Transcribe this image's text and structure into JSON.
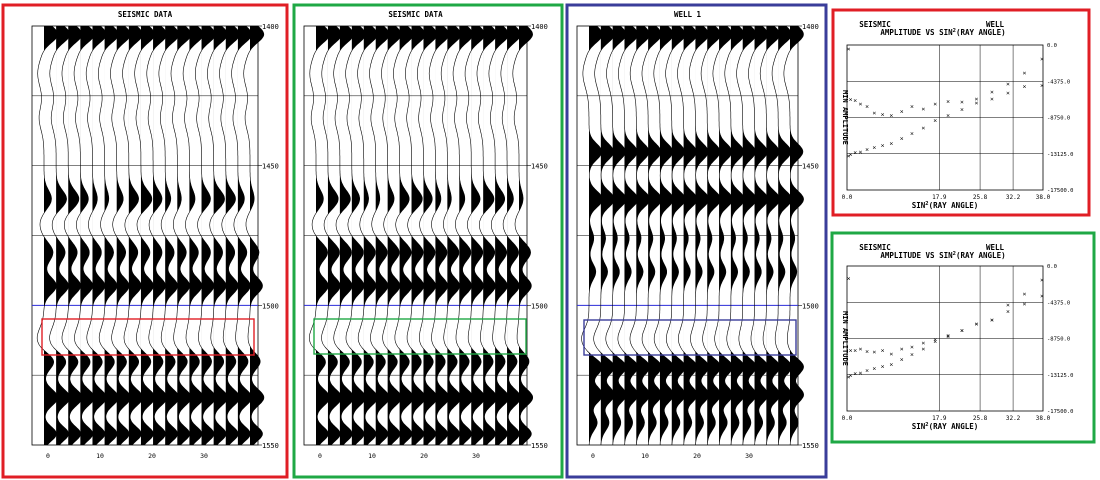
{
  "colors": {
    "red": "#e01e25",
    "green": "#1fa845",
    "blue": "#3a3d9a",
    "series_seismic_red": "#e02020",
    "series_seismic_green": "#1fa845",
    "series_well": "#2a2aa0"
  },
  "panels": [
    {
      "title": "SEISMIC DATA",
      "frame": "red",
      "box_color": "red",
      "y_ticks": [
        "1400",
        "1450",
        "1500",
        "1550"
      ],
      "x_ticks": [
        "0",
        "10",
        "20",
        "30"
      ]
    },
    {
      "title": "SEISMIC DATA",
      "frame": "green",
      "box_color": "green",
      "y_ticks": [
        "1400",
        "1450",
        "1500",
        "1550"
      ],
      "x_ticks": [
        "0",
        "10",
        "20",
        "30"
      ]
    },
    {
      "title": "WELL 1",
      "frame": "blue",
      "box_color": "blue",
      "y_ticks": [
        "1400",
        "1450",
        "1500",
        "1550"
      ],
      "x_ticks": [
        "0",
        "10",
        "20",
        "30"
      ]
    }
  ],
  "chart_data": [
    {
      "type": "scatter",
      "frame": "red",
      "legend_left": "SEISMIC",
      "legend_right": "WELL",
      "title_prefix": "AMPLITUDE VS SIN",
      "title_sup": "2",
      "title_suffix": "(RAY ANGLE)",
      "xlabel_prefix": "SIN",
      "xlabel_sup": "2",
      "xlabel_suffix": "(RAY ANGLE)",
      "ylabel": "MIN AMPLITUDE",
      "x_ticks": [
        "0.0",
        "17.9",
        "25.8",
        "32.2",
        "38.0"
      ],
      "y_ticks": [
        "0.0",
        "-4375.0",
        "-8750.0",
        "-13125.0",
        "-17500.0"
      ],
      "xlim": [
        0,
        38
      ],
      "ylim": [
        -17500,
        0
      ],
      "series": [
        {
          "name": "SEISMIC",
          "color": "series_seismic_red",
          "x": [
            0.3,
            0.7,
            1.6,
            2.6,
            3.9,
            5.3,
            6.9,
            8.6,
            10.6,
            12.6,
            14.8,
            17.1,
            19.6,
            22.3,
            25.1,
            28.1,
            31.2,
            34.4,
            37.8
          ],
          "y": [
            -500,
            -6600,
            -6700,
            -7100,
            -7400,
            -8200,
            -8400,
            -8500,
            -8000,
            -7400,
            -7700,
            -7100,
            -6800,
            -6900,
            -6500,
            -5700,
            -5800,
            -5000,
            -4900
          ]
        },
        {
          "name": "WELL",
          "color": "series_well",
          "x": [
            0.3,
            0.7,
            1.6,
            2.6,
            3.9,
            5.3,
            6.9,
            8.6,
            10.6,
            12.6,
            14.8,
            17.1,
            19.6,
            22.3,
            25.1,
            28.1,
            31.2,
            34.4,
            37.8
          ],
          "y": [
            -13400,
            -13200,
            -13000,
            -12900,
            -12600,
            -12400,
            -12100,
            -11900,
            -11300,
            -10700,
            -10000,
            -9100,
            -8500,
            -7800,
            -7000,
            -6500,
            -4700,
            -3400,
            -1700
          ]
        }
      ]
    },
    {
      "type": "scatter",
      "frame": "green",
      "legend_left": "SEISMIC",
      "legend_right": "WELL",
      "title_prefix": "AMPLITUDE VS SIN",
      "title_sup": "2",
      "title_suffix": "(RAY ANGLE)",
      "xlabel_prefix": "SIN",
      "xlabel_sup": "2",
      "xlabel_suffix": "(RAY ANGLE)",
      "ylabel": "MIN AMPLITUDE",
      "x_ticks": [
        "0.0",
        "17.9",
        "25.8",
        "32.2",
        "38.0"
      ],
      "y_ticks": [
        "0.0",
        "-4375.0",
        "-8750.0",
        "-13125.0",
        "-17500.0"
      ],
      "xlim": [
        0,
        38
      ],
      "ylim": [
        -17500,
        0
      ],
      "series": [
        {
          "name": "SEISMIC",
          "color": "series_seismic_green",
          "x": [
            0.3,
            0.7,
            1.6,
            2.6,
            3.9,
            5.3,
            6.9,
            8.6,
            10.6,
            12.6,
            14.8,
            17.1,
            19.6,
            22.3,
            25.1,
            28.1,
            31.2,
            34.4,
            37.8
          ],
          "y": [
            -1500,
            -10200,
            -10200,
            -10000,
            -10300,
            -10400,
            -10200,
            -10600,
            -10000,
            -9800,
            -9300,
            -8900,
            -8400,
            -7800,
            -7000,
            -6500,
            -5500,
            -4600,
            -3600
          ]
        },
        {
          "name": "WELL",
          "color": "series_well",
          "x": [
            0.3,
            0.7,
            1.6,
            2.6,
            3.9,
            5.3,
            6.9,
            8.6,
            10.6,
            12.6,
            14.8,
            17.1,
            19.6,
            22.3,
            25.1,
            28.1,
            31.2,
            34.4,
            37.8
          ],
          "y": [
            -13400,
            -13200,
            -13000,
            -12900,
            -12600,
            -12400,
            -12100,
            -11900,
            -11300,
            -10700,
            -10000,
            -9100,
            -8500,
            -7800,
            -7000,
            -6500,
            -4700,
            -3400,
            -1700
          ]
        }
      ]
    }
  ]
}
